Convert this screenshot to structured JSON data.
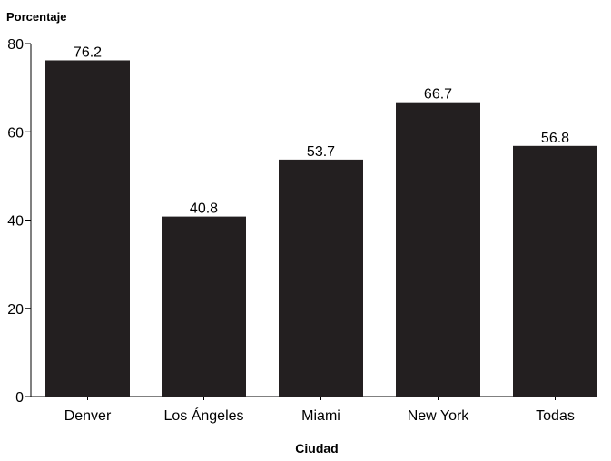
{
  "chart_data": {
    "type": "bar",
    "ylabel": "Porcentaje",
    "xlabel": "Ciudad",
    "categories": [
      "Denver",
      "Los Ángeles",
      "Miami",
      "New York",
      "Todas"
    ],
    "values": [
      76.2,
      40.8,
      53.7,
      66.7,
      56.8
    ],
    "value_labels": [
      "76.2",
      "40.8",
      "53.7",
      "66.7",
      "56.8"
    ],
    "ylim": [
      0,
      80
    ],
    "yticks": [
      0,
      20,
      40,
      60,
      80
    ],
    "bar_color": "#231f20",
    "grid": false,
    "legend": "none"
  }
}
